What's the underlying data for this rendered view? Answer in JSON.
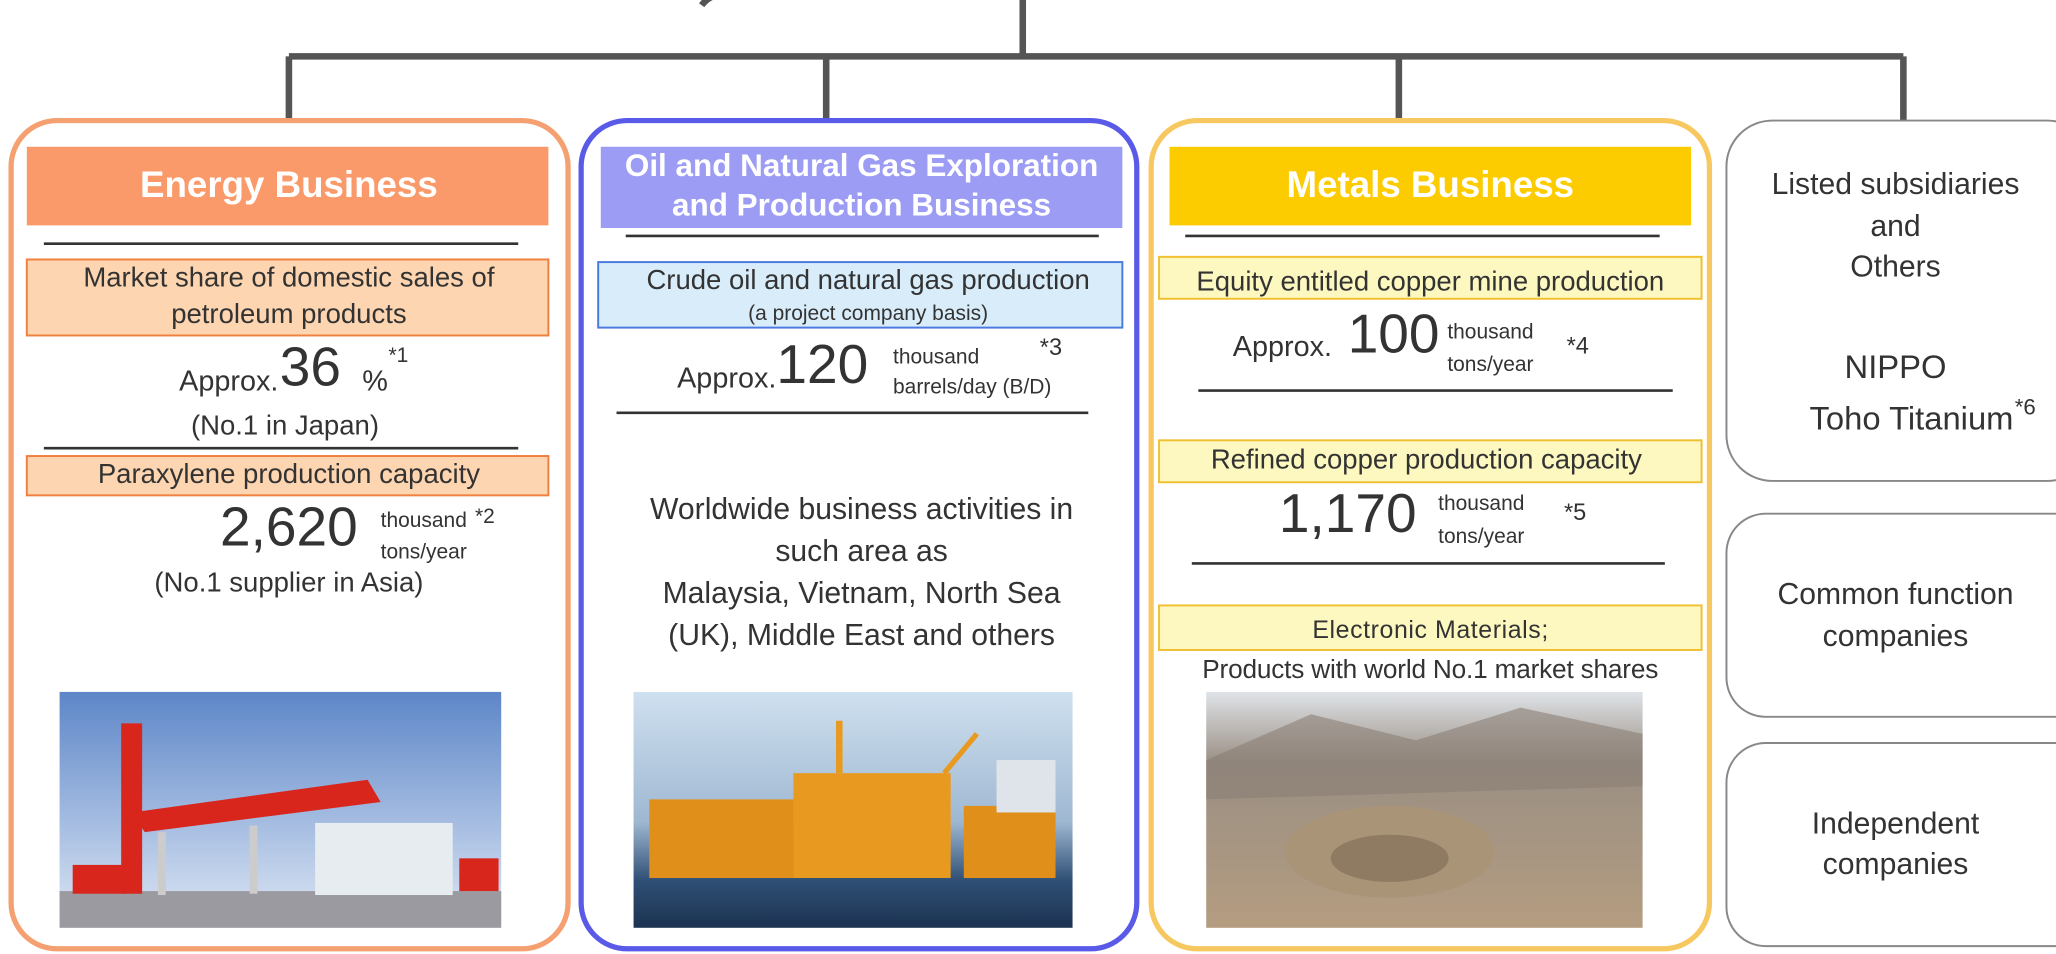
{
  "energy": {
    "title": "Energy Business",
    "share_box": [
      "Market share of domestic sales of",
      "petroleum products"
    ],
    "share_prefix": "Approx.",
    "share_value": "36",
    "share_unit": "%",
    "share_note": "*1",
    "share_rank": "(No.1 in Japan)",
    "para_box": "Paraxylene production capacity",
    "para_value": "2,620",
    "para_unit1": "thousand",
    "para_note": "*2",
    "para_unit2": "tons/year",
    "para_rank": "(No.1 supplier in Asia)"
  },
  "oil": {
    "title": [
      "Oil and Natural Gas Exploration",
      "and Production Business"
    ],
    "prod_box": "Crude oil and natural gas production",
    "prod_sub": "(a project company basis)",
    "prod_prefix": "Approx.",
    "prod_value": "120",
    "prod_unit1": "thousand",
    "prod_unit2": "barrels/day (B/D)",
    "prod_note": "*3",
    "areas": [
      "Worldwide business activities in",
      "such area  as",
      "Malaysia, Vietnam, North Sea",
      "(UK), Middle East and others"
    ]
  },
  "metals": {
    "title": "Metals Business",
    "mine_box": "Equity entitled copper mine production",
    "mine_prefix": "Approx.",
    "mine_value": "100",
    "mine_unit1": "thousand",
    "mine_unit2": "tons/year",
    "mine_note": "*4",
    "refined_box": "Refined copper production capacity",
    "refined_value": "1,170",
    "refined_unit1": "thousand",
    "refined_unit2": "tons/year",
    "refined_note": "*5",
    "elec_box": "Electronic Materials;",
    "elec_sub": "Products with world No.1 market shares"
  },
  "others": {
    "listed": [
      "Listed subsidiaries",
      "and",
      "Others"
    ],
    "companies": [
      "NIPPO",
      "Toho Titanium"
    ],
    "note": "*6",
    "common": [
      "Common  function",
      "companies"
    ],
    "independent": [
      "Independent",
      "companies"
    ]
  }
}
